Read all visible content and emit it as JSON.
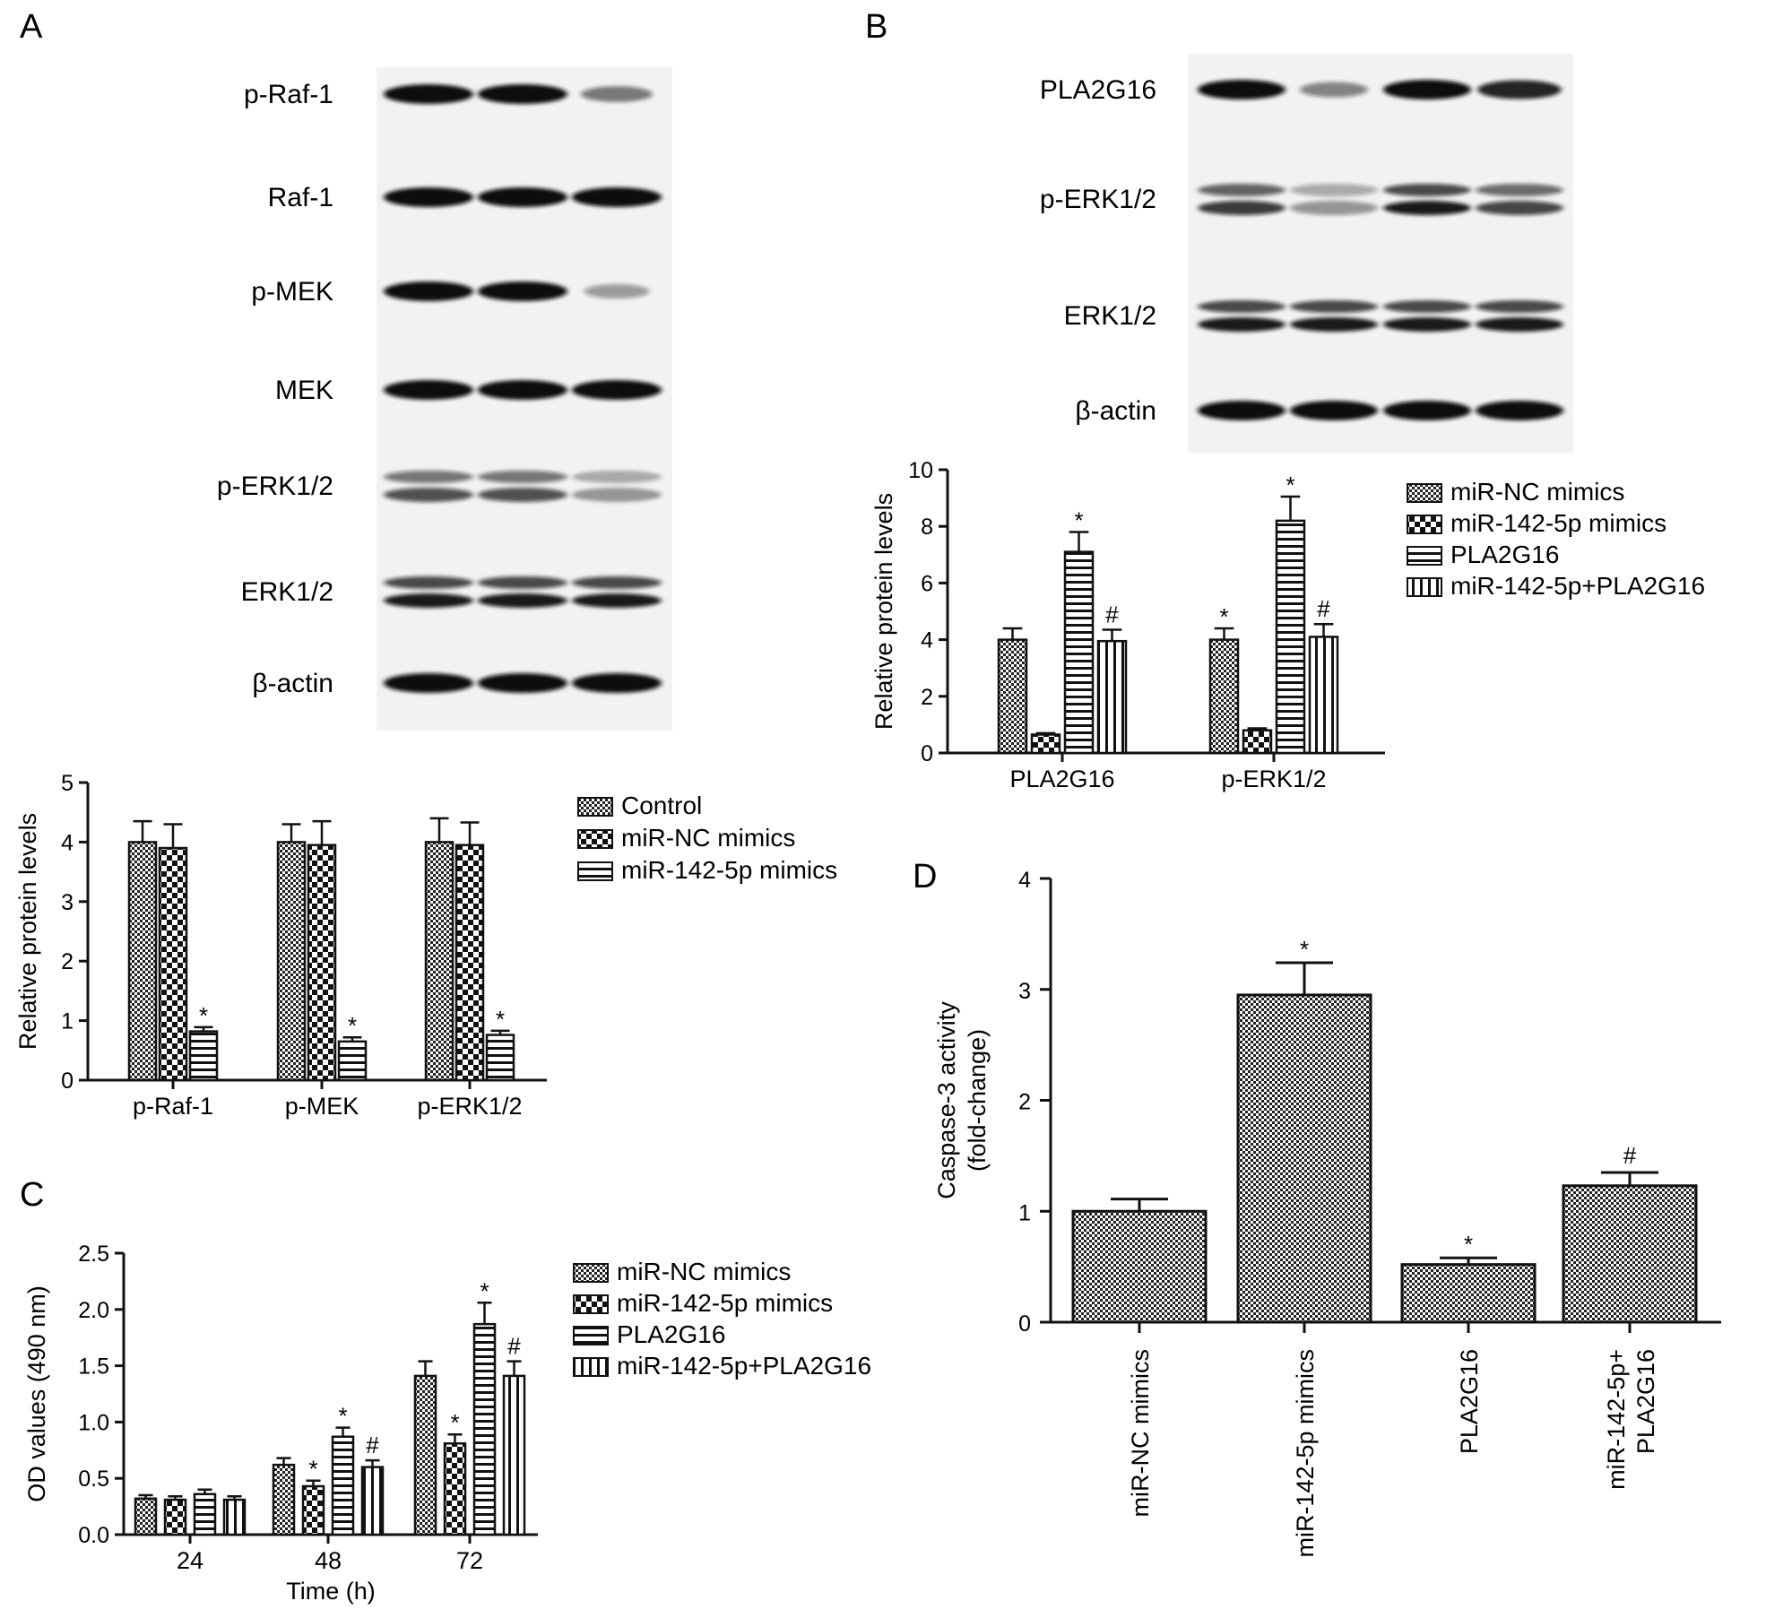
{
  "panels": {
    "A": {
      "letter": "A",
      "blot": {
        "rows": [
          "p-Raf-1",
          "Raf-1",
          "p-MEK",
          "MEK",
          "p-ERK1/2",
          "ERK1/2",
          "β-actin"
        ],
        "lanes": 3
      },
      "chart": {
        "type": "bar",
        "categories": [
          "p-Raf-1",
          "p-MEK",
          "p-ERK1/2"
        ],
        "series": [
          {
            "name": "Control",
            "pattern": "dense",
            "values": [
              4.0,
              4.0,
              4.0
            ],
            "errors": [
              0.35,
              0.3,
              0.4
            ]
          },
          {
            "name": "miR-NC mimics",
            "pattern": "check",
            "values": [
              3.9,
              3.95,
              3.95
            ],
            "errors": [
              0.4,
              0.4,
              0.38
            ]
          },
          {
            "name": "miR-142-5p mimics",
            "pattern": "hlines",
            "values": [
              0.82,
              0.65,
              0.76
            ],
            "errors": [
              0.07,
              0.07,
              0.07
            ]
          }
        ],
        "marks": [
          [
            "",
            "",
            "*"
          ],
          [
            "",
            "",
            "*"
          ],
          [
            "",
            "",
            "*"
          ]
        ],
        "ylabel": "Relative protein levels",
        "ylim": [
          0,
          5
        ],
        "yticks": [
          "0",
          "1",
          "2",
          "3",
          "4",
          "5"
        ]
      }
    },
    "B": {
      "letter": "B",
      "blot": {
        "rows": [
          "PLA2G16",
          "p-ERK1/2",
          "ERK1/2",
          "β-actin"
        ],
        "lanes": 4
      },
      "chart": {
        "type": "bar",
        "categories": [
          "PLA2G16",
          "p-ERK1/2"
        ],
        "series": [
          {
            "name": "miR-NC mimics",
            "pattern": "dense",
            "values": [
              4.0,
              4.0
            ],
            "errors": [
              0.4,
              0.4
            ]
          },
          {
            "name": "miR-142-5p mimics",
            "pattern": "check",
            "values": [
              0.65,
              0.8
            ],
            "errors": [
              0.05,
              0.07
            ]
          },
          {
            "name": "PLA2G16",
            "pattern": "hlines",
            "values": [
              7.1,
              8.2
            ],
            "errors": [
              0.7,
              0.85
            ]
          },
          {
            "name": "miR-142-5p+PLA2G16",
            "pattern": "vlines",
            "values": [
              3.95,
              4.1
            ],
            "errors": [
              0.4,
              0.45
            ]
          }
        ],
        "marks": [
          [
            "",
            "",
            "*",
            "#"
          ],
          [
            "*",
            "",
            "*",
            "#"
          ]
        ],
        "ylabel": "Relative protein levels",
        "ylim": [
          0,
          10
        ],
        "yticks": [
          "0",
          "2",
          "4",
          "6",
          "8",
          "10"
        ]
      }
    },
    "C": {
      "letter": "C",
      "chart": {
        "type": "bar",
        "categories": [
          "24",
          "48",
          "72"
        ],
        "series": [
          {
            "name": "miR-NC mimics",
            "pattern": "dense",
            "values": [
              0.32,
              0.62,
              1.41
            ],
            "errors": [
              0.03,
              0.06,
              0.13
            ]
          },
          {
            "name": "miR-142-5p mimics",
            "pattern": "check",
            "values": [
              0.31,
              0.43,
              0.81
            ],
            "errors": [
              0.03,
              0.05,
              0.08
            ]
          },
          {
            "name": "PLA2G16",
            "pattern": "hlines",
            "values": [
              0.36,
              0.87,
              1.87
            ],
            "errors": [
              0.04,
              0.08,
              0.19
            ]
          },
          {
            "name": "miR-142-5p+PLA2G16",
            "pattern": "vlines",
            "values": [
              0.31,
              0.6,
              1.41
            ],
            "errors": [
              0.03,
              0.06,
              0.13
            ]
          }
        ],
        "marks": [
          [
            "",
            "",
            "",
            ""
          ],
          [
            "",
            "*",
            "*",
            "#"
          ],
          [
            "",
            "*",
            "*",
            "#"
          ]
        ],
        "ylabel": "OD values (490 nm)",
        "xlabel": "Time (h)",
        "ylim": [
          0,
          2.5
        ],
        "yticks": [
          "0.0",
          "0.5",
          "1.0",
          "1.5",
          "2.0",
          "2.5"
        ]
      }
    },
    "D": {
      "letter": "D",
      "chart": {
        "type": "bar",
        "categories": [
          "miR-NC mimics",
          "miR-142-5p mimics",
          "PLA2G16",
          "miR-142-5p+|PLA2G16"
        ],
        "values": [
          1.0,
          2.95,
          0.52,
          1.23
        ],
        "errors": [
          0.11,
          0.29,
          0.06,
          0.12
        ],
        "marks": [
          "",
          "*",
          "*",
          "#"
        ],
        "ylabel": "Caspase-3 activity|(fold-change)",
        "ylim": [
          0,
          4
        ],
        "yticks": [
          "0",
          "1",
          "2",
          "3",
          "4"
        ]
      }
    }
  }
}
